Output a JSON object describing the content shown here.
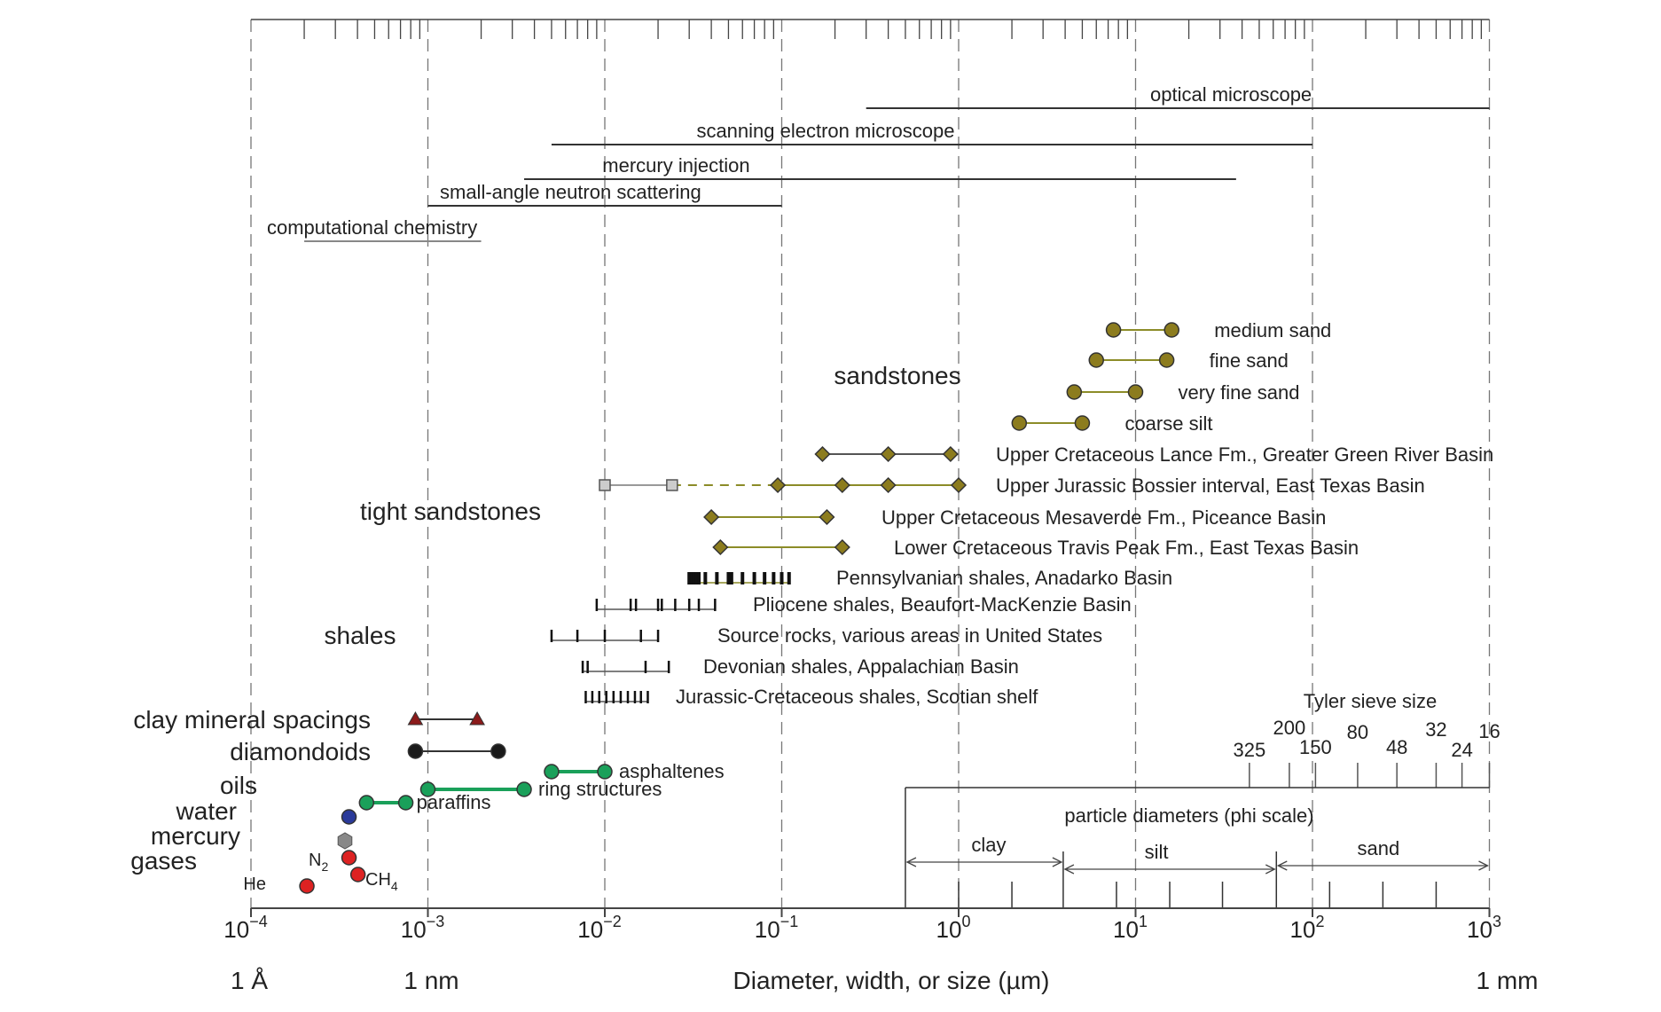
{
  "chart_data": {
    "type": "scatter",
    "title": "",
    "xlabel": "Diameter, width, or size (µm)",
    "x_scale": "log",
    "xlim": [
      0.0001,
      1000
    ],
    "grid": true,
    "x_ticks": [
      {
        "x": 0.0001,
        "base": "10",
        "exp": "−4"
      },
      {
        "x": 0.001,
        "base": "10",
        "exp": "−3"
      },
      {
        "x": 0.01,
        "base": "10",
        "exp": "−2"
      },
      {
        "x": 0.1,
        "base": "10",
        "exp": "−1"
      },
      {
        "x": 1,
        "base": "10",
        "exp": "0"
      },
      {
        "x": 10,
        "base": "10",
        "exp": "1"
      },
      {
        "x": 100,
        "base": "10",
        "exp": "2"
      },
      {
        "x": 1000,
        "base": "10",
        "exp": "3"
      }
    ],
    "unit_labels": [
      {
        "x": 0.0001,
        "text": "1 Å"
      },
      {
        "x": 0.001,
        "text": "1 nm"
      },
      {
        "x": 1000,
        "text": "1 mm"
      }
    ],
    "methods": [
      {
        "name": "optical microscope",
        "x0": 0.3,
        "x1": 1000
      },
      {
        "name": "scanning electron microscope",
        "x0": 0.005,
        "x1": 100
      },
      {
        "name": "mercury injection",
        "x0": 0.0035,
        "x1": 37
      },
      {
        "name": "small-angle neutron scattering",
        "x0": 0.001,
        "x1": 0.1
      },
      {
        "name": "computational chemistry",
        "x0": 0.0002,
        "x1": 0.002
      }
    ],
    "group_labels": [
      "sandstones",
      "tight sandstones",
      "shales"
    ],
    "sandstones": [
      {
        "name": "medium sand",
        "x0": 7.5,
        "x1": 16
      },
      {
        "name": "fine sand",
        "x0": 6,
        "x1": 15
      },
      {
        "name": "very fine sand",
        "x0": 4.5,
        "x1": 10
      },
      {
        "name": "coarse silt",
        "x0": 2.2,
        "x1": 5
      }
    ],
    "tight_sandstones": [
      {
        "name": "Upper Cretaceous Lance Fm., Greater Green River Basin",
        "points": [
          0.17,
          0.4,
          0.9
        ]
      },
      {
        "name": "Upper Jurassic Bossier interval, East Texas Basin",
        "gray_points": [
          0.01,
          0.024
        ],
        "points": [
          0.095,
          0.22,
          0.4,
          1.0
        ]
      },
      {
        "name": "Upper Cretaceous Mesaverde Fm., Piceance Basin",
        "points": [
          0.04,
          0.18
        ]
      },
      {
        "name": "Lower Cretaceous Travis Peak Fm., East Texas Basin",
        "points": [
          0.045,
          0.22
        ]
      }
    ],
    "shales": [
      {
        "name": "Pennsylvanian shales, Anadarko Basin",
        "ticks": [
          0.03,
          0.031,
          0.032,
          0.033,
          0.034,
          0.037,
          0.043,
          0.05,
          0.052,
          0.06,
          0.07,
          0.08,
          0.09,
          0.1,
          0.11
        ]
      },
      {
        "name": "Pliocene shales, Beaufort-MacKenzie Basin",
        "ticks": [
          0.009,
          0.014,
          0.015,
          0.02,
          0.021,
          0.025,
          0.03,
          0.034,
          0.042
        ]
      },
      {
        "name": "Source rocks, various areas in United States",
        "ticks": [
          0.005,
          0.007,
          0.01,
          0.016,
          0.02
        ]
      },
      {
        "name": "Devonian shales, Appalachian Basin",
        "ticks": [
          0.0075,
          0.008,
          0.017,
          0.023
        ]
      },
      {
        "name": "Jurassic-Cretaceous shales, Scotian shelf",
        "ticks": [
          0.0078,
          0.0085,
          0.0093,
          0.0102,
          0.0112,
          0.0123,
          0.0135,
          0.0148,
          0.016,
          0.0175
        ]
      }
    ],
    "molecules": [
      {
        "name": "clay mineral spacings",
        "x0": 0.00085,
        "x1": 0.0019,
        "marker": "triangle",
        "color": "#8b1a1a"
      },
      {
        "name": "diamondoids",
        "x0": 0.00085,
        "x1": 0.0025,
        "marker": "circle",
        "color": "#1a1a1a"
      },
      {
        "name": "asphaltenes",
        "x0": 0.005,
        "x1": 0.01,
        "marker": "circle",
        "color": "#1aa05a"
      },
      {
        "name": "ring structures",
        "x0": 0.001,
        "x1": 0.0035,
        "marker": "circle",
        "color": "#1aa05a"
      },
      {
        "name": "paraffins",
        "x0": 0.00045,
        "x1": 0.00075,
        "marker": "circle",
        "color": "#1aa05a"
      }
    ],
    "category_labels": [
      "oils",
      "water",
      "mercury",
      "gases"
    ],
    "gases": [
      {
        "name": "He",
        "x": 0.0002
      },
      {
        "name": "N",
        "sub": "2",
        "x": 0.00035
      },
      {
        "name": "CH",
        "sub": "4",
        "x": 0.00038
      }
    ],
    "water_x": 0.00035,
    "mercury_x": 0.00034,
    "tyler_sieve": {
      "title": "Tyler sieve size",
      "sizes": [
        {
          "label": "325",
          "x": 44
        },
        {
          "label": "200",
          "x": 74
        },
        {
          "label": "150",
          "x": 104
        },
        {
          "label": "80",
          "x": 180
        },
        {
          "label": "48",
          "x": 300
        },
        {
          "label": "32",
          "x": 500
        },
        {
          "label": "24",
          "x": 700
        },
        {
          "label": "16",
          "x": 1000
        }
      ]
    },
    "particle_scale": {
      "title": "particle diameters (phi scale)",
      "x_start": 0.5,
      "x_end": 1000,
      "classes": [
        {
          "name": "clay",
          "x0": 0.5,
          "x1": 3.9
        },
        {
          "name": "silt",
          "x0": 3.9,
          "x1": 62.5
        },
        {
          "name": "sand",
          "x0": 62.5,
          "x1": 1000
        }
      ],
      "phi_ticks": [
        1,
        2,
        3.9,
        7.8,
        15.6,
        31,
        62.5,
        125,
        250,
        500
      ]
    },
    "colors": {
      "sandstone": "#8c7c1e",
      "sandstone_line": "#8c8c28",
      "axis": "#444444",
      "grid": "#777777",
      "method_line": "#333333",
      "green": "#1aa05a",
      "water": "#2a3a9a",
      "mercury": "#888888",
      "gas": "#dd2222"
    }
  }
}
